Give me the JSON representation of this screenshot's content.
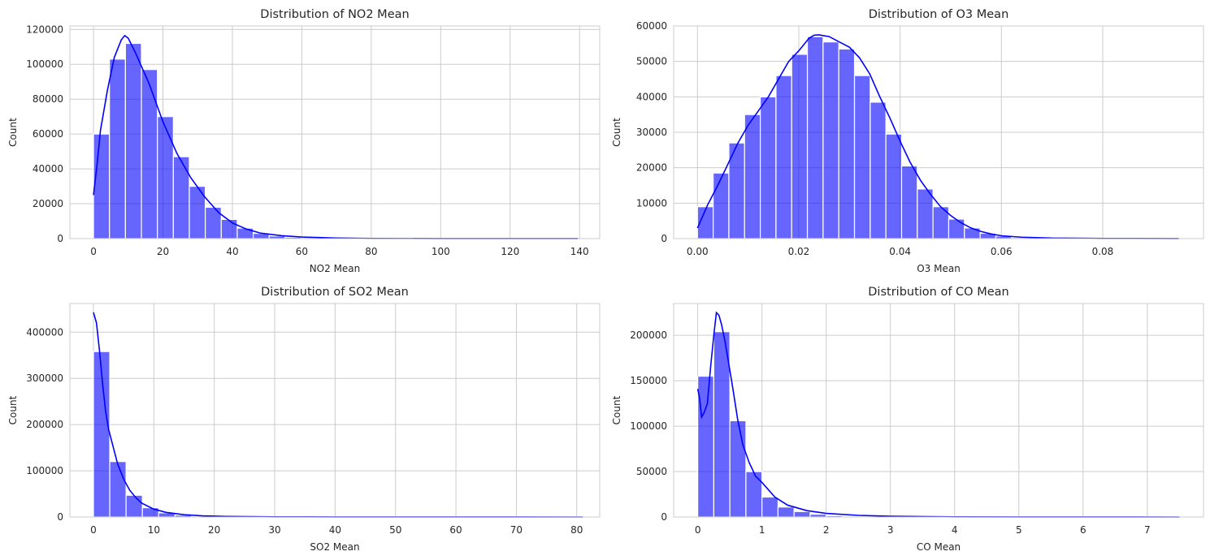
{
  "colors": {
    "bar": "#0000ff",
    "kde": "#0000ff",
    "grid": "#cccccc"
  },
  "chart_data": [
    {
      "type": "bar",
      "title": "Distribution of NO2 Mean",
      "xlabel": "NO2 Mean",
      "ylabel": "Count",
      "xlim": [
        -6.8,
        145.8
      ],
      "ylim": [
        0,
        122000
      ],
      "xticks": [
        0,
        20,
        40,
        60,
        80,
        100,
        120,
        140
      ],
      "xtick_labels": [
        "0",
        "20",
        "40",
        "60",
        "80",
        "100",
        "120",
        "140"
      ],
      "yticks": [
        0,
        20000,
        40000,
        60000,
        80000,
        100000,
        120000
      ],
      "ytick_labels": [
        "0",
        "20000",
        "40000",
        "60000",
        "80000",
        "100000",
        "120000"
      ],
      "bin_start": 0,
      "bin_width": 4.6,
      "values": [
        60000,
        103000,
        112000,
        97000,
        70000,
        47000,
        30000,
        18000,
        11000,
        6000,
        3000,
        1500,
        800,
        400,
        200,
        100,
        60,
        40,
        30,
        20,
        15,
        10,
        8,
        6,
        5,
        4,
        3,
        2,
        1,
        1
      ],
      "kde": {
        "x": [
          0,
          1,
          2,
          4,
          6,
          8,
          9,
          10,
          12,
          14,
          16,
          18,
          20,
          24,
          28,
          32,
          36,
          40,
          44,
          48,
          54,
          60,
          70,
          80,
          100,
          120,
          139.5
        ],
        "y": [
          25000,
          42000,
          62000,
          85000,
          104000,
          114000,
          116500,
          115000,
          107000,
          98000,
          89000,
          78000,
          67000,
          49000,
          35000,
          24000,
          15000,
          9000,
          5500,
          3200,
          1700,
          900,
          300,
          100,
          40,
          20,
          10
        ]
      }
    },
    {
      "type": "bar",
      "title": "Distribution of O3 Mean",
      "xlabel": "O3 Mean",
      "ylabel": "Count",
      "xlim": [
        -0.0047,
        0.0999
      ],
      "ylim": [
        0,
        60000
      ],
      "xticks": [
        0,
        0.02,
        0.04,
        0.06,
        0.08
      ],
      "xtick_labels": [
        "0.00",
        "0.02",
        "0.04",
        "0.06",
        "0.08"
      ],
      "yticks": [
        0,
        10000,
        20000,
        30000,
        40000,
        50000,
        60000
      ],
      "ytick_labels": [
        "0",
        "10000",
        "20000",
        "30000",
        "40000",
        "50000",
        "60000"
      ],
      "bin_start": 0,
      "bin_width": 0.0031,
      "values": [
        9000,
        18500,
        27000,
        35000,
        40000,
        46000,
        52000,
        57000,
        55500,
        53500,
        46000,
        38500,
        29500,
        20500,
        14000,
        9000,
        5500,
        3000,
        1500,
        700,
        300,
        150,
        80,
        40,
        20,
        10,
        5,
        3,
        2,
        1
      ],
      "kde": {
        "x": [
          0,
          0.002,
          0.004,
          0.006,
          0.008,
          0.01,
          0.012,
          0.014,
          0.016,
          0.018,
          0.02,
          0.022,
          0.023,
          0.024,
          0.026,
          0.028,
          0.03,
          0.032,
          0.034,
          0.036,
          0.038,
          0.04,
          0.042,
          0.044,
          0.046,
          0.048,
          0.05,
          0.052,
          0.054,
          0.056,
          0.058,
          0.06,
          0.064,
          0.07,
          0.08,
          0.095
        ],
        "y": [
          3000,
          9500,
          15000,
          21000,
          27000,
          32000,
          36000,
          40000,
          45000,
          50000,
          53000,
          56500,
          57400,
          57500,
          57000,
          55500,
          54000,
          51000,
          46500,
          40000,
          34000,
          27500,
          21500,
          16500,
          12500,
          9000,
          6500,
          4500,
          3000,
          2000,
          1300,
          800,
          400,
          150,
          50,
          10
        ]
      }
    },
    {
      "type": "bar",
      "title": "Distribution of SO2 Mean",
      "xlabel": "SO2 Mean",
      "ylabel": "Count",
      "xlim": [
        -3.9,
        83.8
      ],
      "ylim": [
        0,
        462000
      ],
      "xticks": [
        0,
        10,
        20,
        30,
        40,
        50,
        60,
        70,
        80
      ],
      "xtick_labels": [
        "0",
        "10",
        "20",
        "30",
        "40",
        "50",
        "60",
        "70",
        "80"
      ],
      "yticks": [
        0,
        100000,
        200000,
        300000,
        400000
      ],
      "ytick_labels": [
        "0",
        "100000",
        "200000",
        "300000",
        "400000"
      ],
      "bin_start": 0,
      "bin_width": 2.7,
      "values": [
        358000,
        120000,
        47000,
        20000,
        9000,
        4000,
        2000,
        1000,
        500,
        300,
        200,
        100,
        80,
        60,
        40,
        30,
        20,
        15,
        10,
        8,
        6,
        5,
        4,
        3,
        2,
        2,
        1,
        1,
        1,
        1
      ],
      "kde": {
        "x": [
          0,
          0.5,
          1,
          1.5,
          2,
          2.5,
          3,
          4,
          5,
          6,
          7,
          8,
          10,
          12,
          15,
          18,
          22,
          30,
          40,
          60,
          81
        ],
        "y": [
          443000,
          420000,
          360000,
          290000,
          230000,
          190000,
          165000,
          115000,
          82000,
          58000,
          42000,
          30000,
          17000,
          10000,
          5000,
          2500,
          1200,
          400,
          150,
          40,
          10
        ]
      }
    },
    {
      "type": "bar",
      "title": "Distribution of CO Mean",
      "xlabel": "CO Mean",
      "ylabel": "Count",
      "xlim": [
        -0.375,
        7.875
      ],
      "ylim": [
        0,
        235000
      ],
      "xticks": [
        0,
        1,
        2,
        3,
        4,
        5,
        6,
        7
      ],
      "xtick_labels": [
        "0",
        "1",
        "2",
        "3",
        "4",
        "5",
        "6",
        "7"
      ],
      "yticks": [
        0,
        50000,
        100000,
        150000,
        200000
      ],
      "ytick_labels": [
        "0",
        "50000",
        "100000",
        "150000",
        "200000"
      ],
      "bin_start": 0,
      "bin_width": 0.25,
      "values": [
        155000,
        204000,
        106000,
        50000,
        22000,
        11000,
        6000,
        3000,
        1500,
        800,
        500,
        300,
        200,
        100,
        60,
        40,
        30,
        20,
        15,
        10,
        8,
        6,
        5,
        4,
        3,
        2,
        2,
        1,
        1,
        1
      ],
      "kde": {
        "x": [
          0,
          0.03,
          0.06,
          0.1,
          0.15,
          0.2,
          0.25,
          0.29,
          0.33,
          0.37,
          0.42,
          0.48,
          0.55,
          0.62,
          0.7,
          0.8,
          0.9,
          1.0,
          1.2,
          1.4,
          1.7,
          2.0,
          2.5,
          3.0,
          4.0,
          5.0,
          7.5
        ],
        "y": [
          141000,
          130000,
          110000,
          115000,
          125000,
          165000,
          200000,
          225000,
          222000,
          212000,
          195000,
          170000,
          140000,
          108000,
          80000,
          60000,
          45000,
          38000,
          22000,
          13000,
          7000,
          4000,
          1800,
          800,
          200,
          80,
          10
        ]
      }
    }
  ]
}
